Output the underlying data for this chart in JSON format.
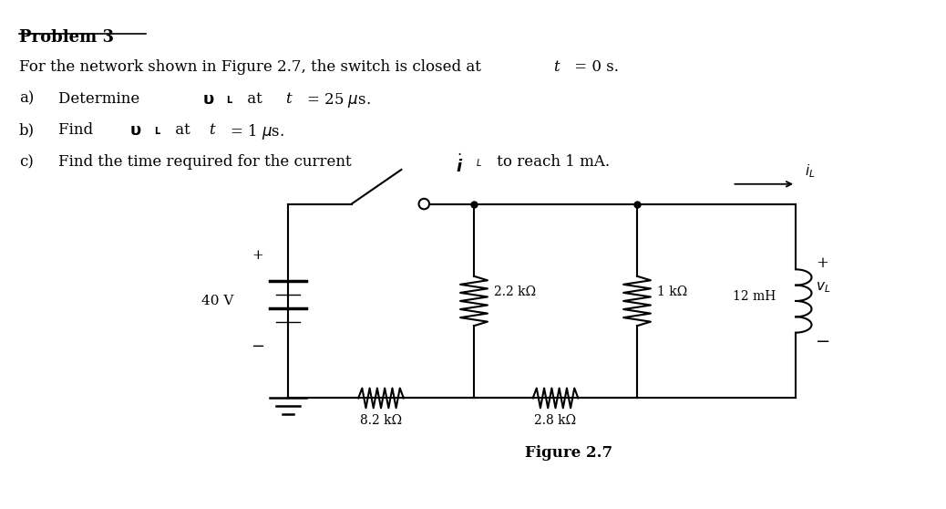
{
  "title": "Problem 3",
  "figure_label": "Figure 2.7",
  "voltage_source": "40 V",
  "r1_label": "2.2 kΩ",
  "r2_label": "1 kΩ",
  "r3_label": "8.2 kΩ",
  "r4_label": "2.8 kΩ",
  "inductor_label": "12 mH",
  "bg_color": "#ffffff",
  "line_color": "#000000"
}
